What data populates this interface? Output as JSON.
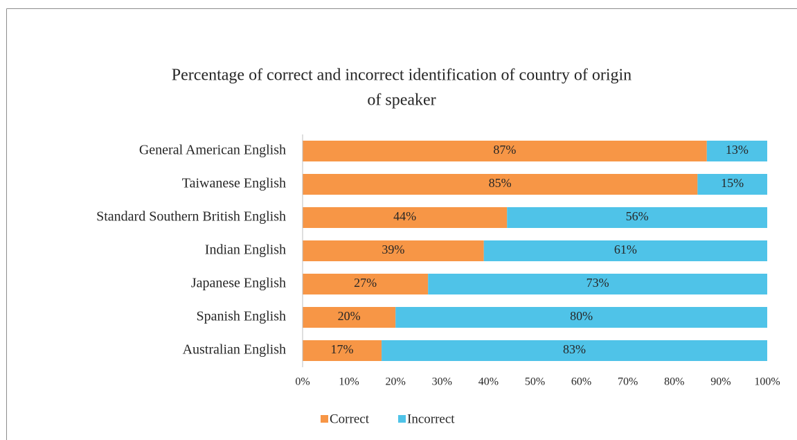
{
  "chart_data": {
    "type": "stacked_barh",
    "title": [
      "Percentage of correct and incorrect identification of country of origin",
      "of speaker"
    ],
    "categories": [
      "General American English",
      "Taiwanese English",
      "Standard Southern British English",
      "Indian English",
      "Japanese English",
      "Spanish English",
      "Australian English"
    ],
    "series": [
      {
        "name": "Correct",
        "color": "#f79646",
        "values": [
          87,
          85,
          44,
          39,
          27,
          20,
          17
        ],
        "value_labels": [
          "87%",
          "85%",
          "44%",
          "39%",
          "27%",
          "20%",
          "17%"
        ]
      },
      {
        "name": "Incorrect",
        "color": "#4fc3e8",
        "values": [
          13,
          15,
          56,
          61,
          73,
          80,
          83
        ],
        "value_labels": [
          "13%",
          "15%",
          "56%",
          "61%",
          "73%",
          "80%",
          "83%"
        ]
      }
    ],
    "xlim": [
      0,
      100
    ],
    "xticks": [
      {
        "value": 0,
        "label": "0%"
      },
      {
        "value": 10,
        "label": "10%"
      },
      {
        "value": 20,
        "label": "20%"
      },
      {
        "value": 30,
        "label": "30%"
      },
      {
        "value": 40,
        "label": "40%"
      },
      {
        "value": 50,
        "label": "50%"
      },
      {
        "value": 60,
        "label": "60%"
      },
      {
        "value": 70,
        "label": "70%"
      },
      {
        "value": 80,
        "label": "80%"
      },
      {
        "value": 90,
        "label": "90%"
      },
      {
        "value": 100,
        "label": "100%"
      }
    ],
    "legend": "bottom"
  }
}
